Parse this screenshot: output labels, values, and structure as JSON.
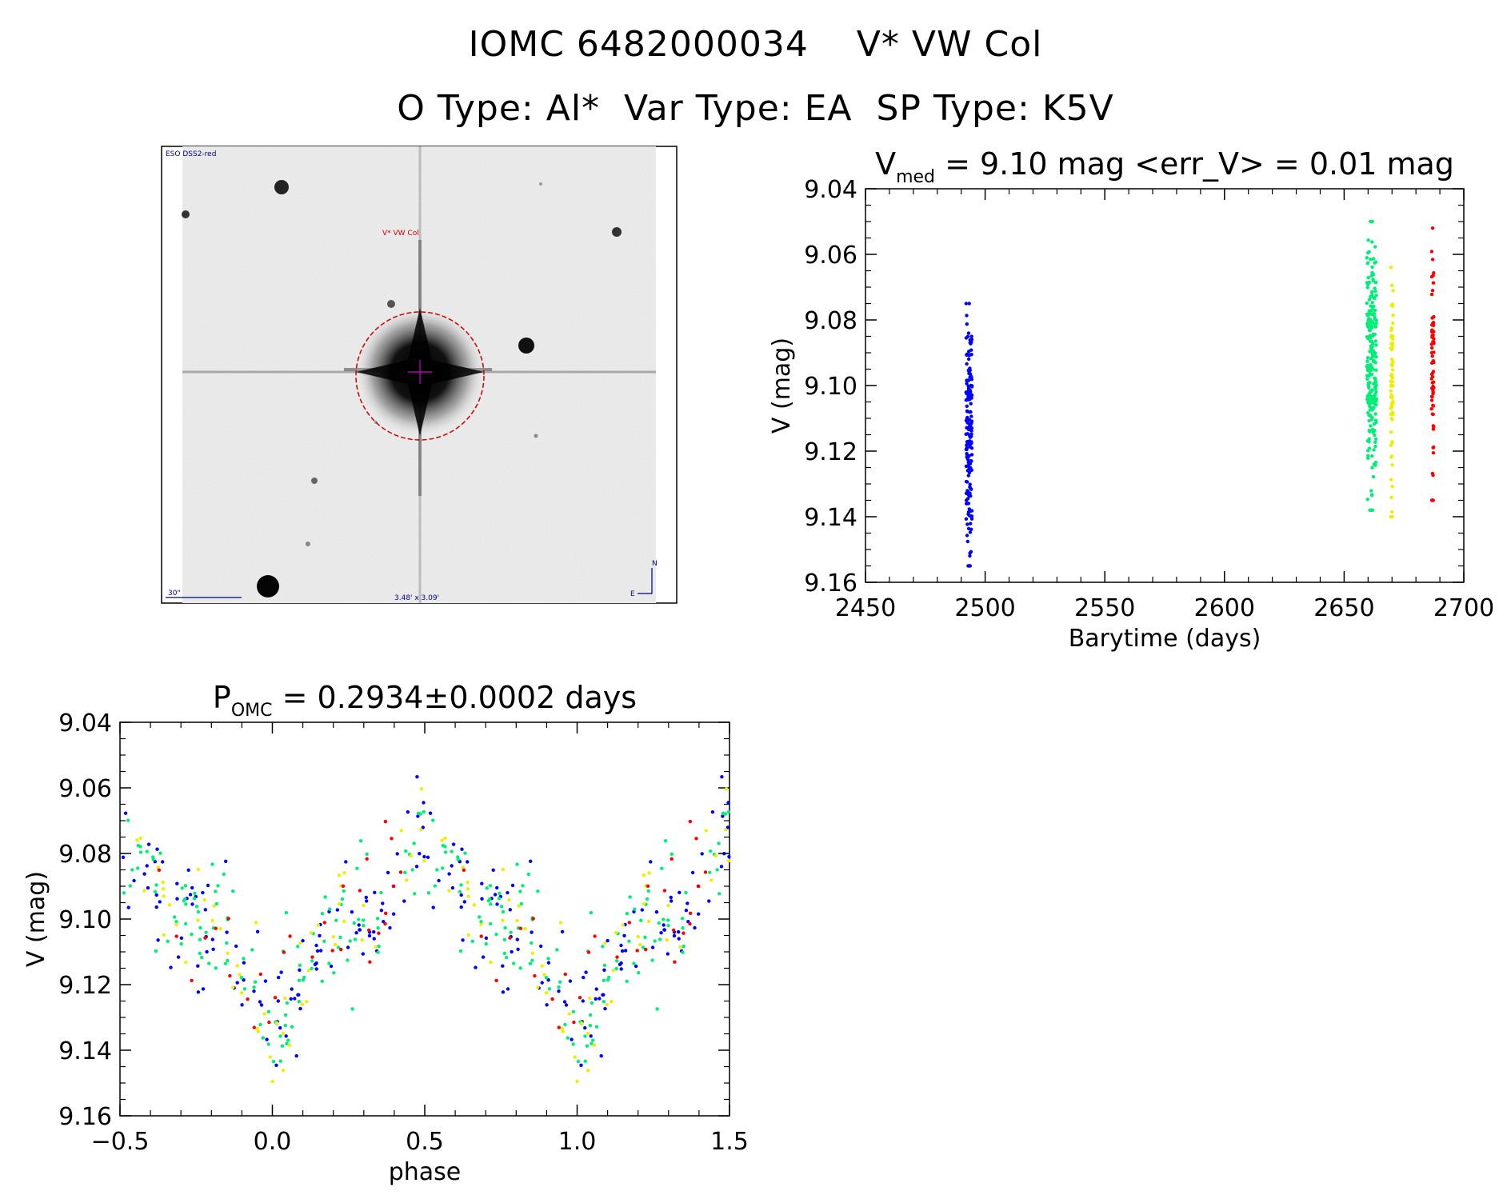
{
  "header": {
    "line1": "IOMC 6482000034    V* VW Col",
    "line2": "O Type: Al*  Var Type: EA  SP Type: K5V"
  },
  "image_panel": {
    "survey_label": "ESO DSS2-red",
    "target_label": "V* VW Col",
    "scale_label": "30\"",
    "fov_label": "3.48' x 3.09'",
    "compass_n": "N",
    "compass_e": "E"
  },
  "colors": {
    "blue": "#0000ff",
    "green": "#00ee77",
    "yellow": "#eeee00",
    "red": "#ff0000"
  },
  "chart_data": [
    {
      "type": "scatter",
      "title_prefix": "V",
      "title_sub": "med",
      "title_rest": " = 9.10 mag <err_V> = 0.01 mag",
      "xlabel": "Barytime (days)",
      "ylabel": "V (mag)",
      "xlim": [
        2450,
        2700
      ],
      "ylim": [
        9.16,
        9.04
      ],
      "xticks": [
        "2450",
        "2500",
        "2550",
        "2600",
        "2650",
        "2700"
      ],
      "yticks": [
        "9.04",
        "9.06",
        "9.08",
        "9.10",
        "9.12",
        "9.14",
        "9.16"
      ],
      "series": [
        {
          "name": "blue",
          "color": "#0000ff",
          "x_range": [
            2492.0,
            2494.5
          ],
          "v_range": [
            9.075,
            9.155
          ],
          "n": 180
        },
        {
          "name": "green",
          "color": "#00ee77",
          "x_range": [
            2659.5,
            2663.5
          ],
          "v_range": [
            9.05,
            9.138
          ],
          "n": 230
        },
        {
          "name": "yellow",
          "color": "#eeee00",
          "x_range": [
            2669.5,
            2670.5
          ],
          "v_range": [
            9.064,
            9.14
          ],
          "n": 70
        },
        {
          "name": "red",
          "color": "#ff0000",
          "x_range": [
            2686.5,
            2687.5
          ],
          "v_range": [
            9.052,
            9.135
          ],
          "n": 70
        }
      ]
    },
    {
      "type": "scatter",
      "title_prefix": "P",
      "title_sub": "OMC",
      "title_rest": " = 0.2934±0.0002 days",
      "xlabel": "phase",
      "ylabel": "V (mag)",
      "xlim": [
        -0.5,
        1.5
      ],
      "ylim": [
        9.16,
        9.04
      ],
      "xticks": [
        "−0.5",
        "0.0",
        "0.5",
        "1.0",
        "1.5"
      ],
      "yticks": [
        "9.04",
        "9.06",
        "9.08",
        "9.10",
        "9.12",
        "9.14",
        "9.16"
      ],
      "period_days": 0.2934,
      "light_curve": {
        "phases": [
          0.0,
          0.1,
          0.2,
          0.35,
          0.42,
          0.5,
          0.58,
          0.65,
          0.8,
          0.9,
          1.0
        ],
        "v": [
          9.138,
          9.112,
          9.102,
          9.098,
          9.082,
          9.075,
          9.082,
          9.098,
          9.102,
          9.112,
          9.138
        ],
        "scatter": 0.012
      },
      "series": [
        {
          "name": "blue",
          "color": "#0000ff",
          "n": 110
        },
        {
          "name": "green",
          "color": "#00ee77",
          "n": 120
        },
        {
          "name": "yellow",
          "color": "#eeee00",
          "n": 55
        },
        {
          "name": "red",
          "color": "#ff0000",
          "n": 30
        }
      ]
    }
  ]
}
